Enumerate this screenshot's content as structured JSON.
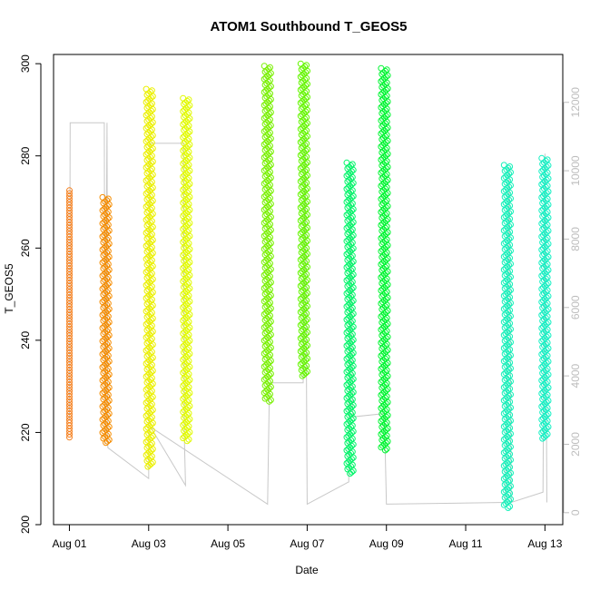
{
  "chart_data": {
    "type": "scatter",
    "title": "ATOM1 Southbound T_GEOS5",
    "xlabel": "Date",
    "ylabel": "T_GEOS5",
    "x_tick_labels": [
      "Aug 01",
      "Aug 03",
      "Aug 05",
      "Aug 07",
      "Aug 09",
      "Aug 11",
      "Aug 13"
    ],
    "x_tick_days": [
      1,
      3,
      5,
      7,
      9,
      11,
      13
    ],
    "xlim_days": [
      0.6,
      13.45
    ],
    "ylim": [
      200,
      302
    ],
    "y_ticks": [
      200,
      220,
      240,
      260,
      280,
      300
    ],
    "y2_ticks": [
      0,
      2000,
      4000,
      6000,
      8000,
      10000,
      12000
    ],
    "y2lim": [
      -350,
      13400
    ],
    "grid": false,
    "legend": "none",
    "colors": {
      "altitude_line": "#c8c8c8",
      "axis": "#000000",
      "right_axis": "#bdbdbd"
    },
    "series": [
      {
        "day": 1.0,
        "ymin": 218.5,
        "ymax": 272.5,
        "color": "#f5801f",
        "density": "sparse"
      },
      {
        "day": 1.92,
        "ymin": 217.5,
        "ymax": 271.0,
        "color": "#f58c00",
        "density": "dense"
      },
      {
        "day": 3.02,
        "ymin": 212.5,
        "ymax": 294.5,
        "color": "#ebf000",
        "density": "dense"
      },
      {
        "day": 3.95,
        "ymin": 218.0,
        "ymax": 292.5,
        "color": "#e1fa00",
        "density": "dense"
      },
      {
        "day": 6.0,
        "ymin": 226.5,
        "ymax": 299.5,
        "color": "#78f000",
        "density": "dense"
      },
      {
        "day": 6.92,
        "ymin": 232.0,
        "ymax": 300.0,
        "color": "#64f500",
        "density": "dense"
      },
      {
        "day": 8.08,
        "ymin": 211.0,
        "ymax": 278.5,
        "color": "#00f569",
        "density": "dense"
      },
      {
        "day": 8.95,
        "ymin": 216.0,
        "ymax": 299.0,
        "color": "#00f532",
        "density": "dense"
      },
      {
        "day": 12.05,
        "ymin": 203.5,
        "ymax": 278.0,
        "color": "#14f0b9",
        "density": "dense"
      },
      {
        "day": 13.0,
        "ymin": 218.5,
        "ymax": 279.5,
        "color": "#14f0c3",
        "density": "dense"
      }
    ],
    "altitude_track": [
      {
        "day": 1.0,
        "alt": 2700
      },
      {
        "day": 1.02,
        "alt": 11400
      },
      {
        "day": 1.88,
        "alt": 11400
      },
      {
        "day": 1.9,
        "alt": 2000
      },
      {
        "day": 1.95,
        "alt": 11400
      },
      {
        "day": 1.97,
        "alt": 1900
      },
      {
        "day": 3.0,
        "alt": 1000
      },
      {
        "day": 3.03,
        "alt": 10800
      },
      {
        "day": 3.88,
        "alt": 10800
      },
      {
        "day": 3.9,
        "alt": 2200
      },
      {
        "day": 3.93,
        "alt": 800
      },
      {
        "day": 3.05,
        "alt": 2500
      },
      {
        "day": 6.0,
        "alt": 250
      },
      {
        "day": 6.05,
        "alt": 3800
      },
      {
        "day": 6.9,
        "alt": 3800
      },
      {
        "day": 6.95,
        "alt": 11000
      },
      {
        "day": 7.0,
        "alt": 250
      },
      {
        "day": 8.05,
        "alt": 900
      },
      {
        "day": 8.1,
        "alt": 10100
      },
      {
        "day": 8.15,
        "alt": 2800
      },
      {
        "day": 8.95,
        "alt": 2900
      },
      {
        "day": 9.0,
        "alt": 250
      },
      {
        "day": 12.0,
        "alt": 300
      },
      {
        "day": 12.1,
        "alt": 10100
      },
      {
        "day": 12.15,
        "alt": 300
      },
      {
        "day": 12.95,
        "alt": 600
      },
      {
        "day": 13.0,
        "alt": 10500
      },
      {
        "day": 13.05,
        "alt": 300
      }
    ]
  }
}
